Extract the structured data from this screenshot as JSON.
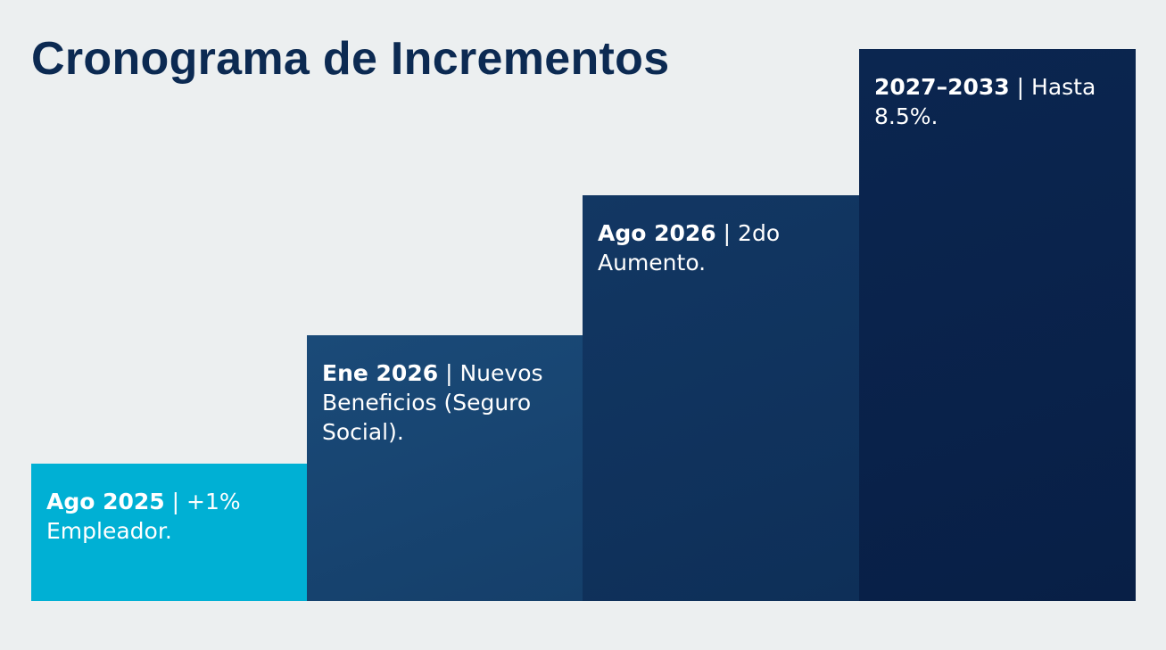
{
  "title": "Cronograma de Incrementos",
  "steps": [
    {
      "label": "Ago 2025",
      "text": "+1% Empleador.",
      "color": "#00b0d4"
    },
    {
      "label": "Ene 2026",
      "text": "Nuevos Beneficios (Seguro Social).",
      "color": "#17446f"
    },
    {
      "label": "Ago 2026",
      "text": "2do Aumento.",
      "color": "#10335c"
    },
    {
      "label": "2027–2033",
      "text": "Hasta 8.5%.",
      "color": "#0a2249"
    }
  ],
  "separator": "|"
}
